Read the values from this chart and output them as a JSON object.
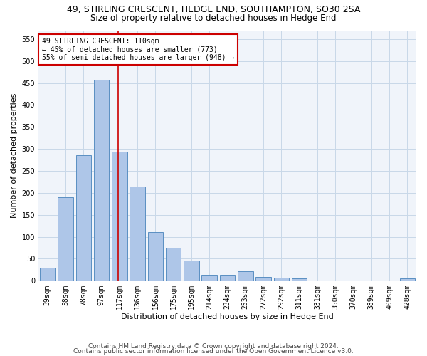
{
  "title1": "49, STIRLING CRESCENT, HEDGE END, SOUTHAMPTON, SO30 2SA",
  "title2": "Size of property relative to detached houses in Hedge End",
  "xlabel": "Distribution of detached houses by size in Hedge End",
  "ylabel": "Number of detached properties",
  "categories": [
    "39sqm",
    "58sqm",
    "78sqm",
    "97sqm",
    "117sqm",
    "136sqm",
    "156sqm",
    "175sqm",
    "195sqm",
    "214sqm",
    "234sqm",
    "253sqm",
    "272sqm",
    "292sqm",
    "311sqm",
    "331sqm",
    "350sqm",
    "370sqm",
    "389sqm",
    "409sqm",
    "428sqm"
  ],
  "values": [
    30,
    190,
    285,
    457,
    293,
    215,
    110,
    75,
    46,
    13,
    13,
    21,
    9,
    7,
    5,
    0,
    0,
    0,
    0,
    0,
    5
  ],
  "bar_color": "#aec6e8",
  "bar_edge_color": "#5a8fc2",
  "vline_x_index": 3.93,
  "marker_label_line1": "49 STIRLING CRESCENT: 110sqm",
  "marker_label_line2": "← 45% of detached houses are smaller (773)",
  "marker_label_line3": "55% of semi-detached houses are larger (948) →",
  "vline_color": "#cc0000",
  "annotation_box_color": "#cc0000",
  "grid_color": "#c8d8e8",
  "background_color": "#f0f4fa",
  "ylim": [
    0,
    570
  ],
  "yticks": [
    0,
    50,
    100,
    150,
    200,
    250,
    300,
    350,
    400,
    450,
    500,
    550
  ],
  "footer1": "Contains HM Land Registry data © Crown copyright and database right 2024.",
  "footer2": "Contains public sector information licensed under the Open Government Licence v3.0.",
  "title1_fontsize": 9,
  "title2_fontsize": 8.5,
  "xlabel_fontsize": 8,
  "ylabel_fontsize": 8,
  "tick_fontsize": 7,
  "annotation_fontsize": 7,
  "footer_fontsize": 6.5
}
